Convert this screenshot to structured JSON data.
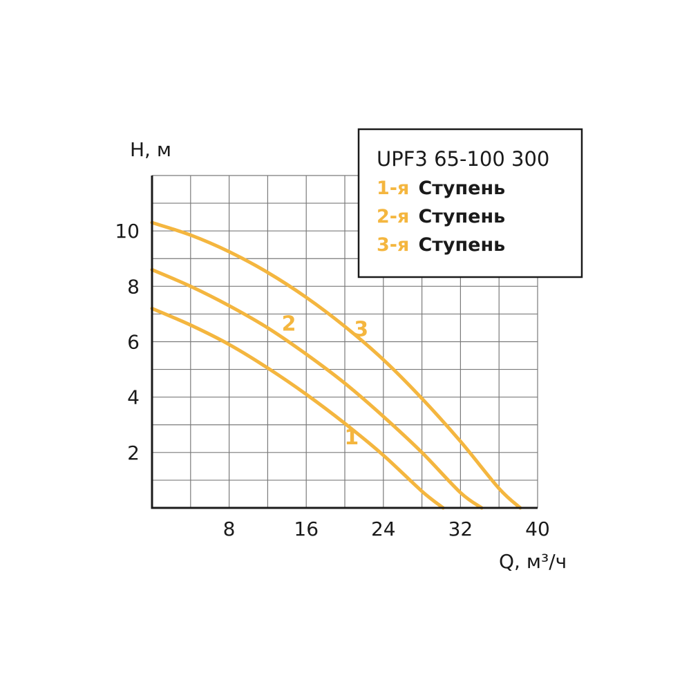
{
  "colors": {
    "curve": "#f4b63f",
    "grid": "#7a7a7a",
    "axis": "#1a1a1a"
  },
  "chart_data": {
    "type": "line",
    "xlabel": "Q, м³/ч",
    "ylabel": "H, м",
    "xlim": [
      0,
      40
    ],
    "ylim": [
      0,
      12
    ],
    "x_ticks": [
      8,
      16,
      24,
      32,
      40
    ],
    "y_ticks": [
      2,
      4,
      6,
      8,
      10
    ],
    "grid": true,
    "legend": {
      "title": "UPF3 65-100 300",
      "placement": "top-right",
      "entries": [
        {
          "num": "1-я",
          "word": "Ступень"
        },
        {
          "num": "2-я",
          "word": "Ступень"
        },
        {
          "num": "3-я",
          "word": "Ступень"
        }
      ]
    },
    "series": [
      {
        "label": "1",
        "label_at": [
          20.7,
          2.3
        ],
        "x": [
          0,
          4,
          8,
          12,
          16,
          20,
          24,
          28,
          30.2
        ],
        "y": [
          7.2,
          6.6,
          5.9,
          5.05,
          4.1,
          3.05,
          1.9,
          0.6,
          0
        ]
      },
      {
        "label": "2",
        "label_at": [
          14.2,
          6.4
        ],
        "x": [
          0,
          4,
          8,
          12,
          16,
          20,
          24,
          28,
          32,
          34.2
        ],
        "y": [
          8.6,
          8.0,
          7.3,
          6.5,
          5.55,
          4.5,
          3.3,
          2.0,
          0.55,
          0
        ]
      },
      {
        "label": "3",
        "label_at": [
          21.7,
          6.2
        ],
        "x": [
          0,
          4,
          8,
          12,
          16,
          20,
          24,
          28,
          32,
          36,
          38.2
        ],
        "y": [
          10.3,
          9.85,
          9.25,
          8.5,
          7.6,
          6.55,
          5.35,
          3.95,
          2.4,
          0.7,
          0
        ]
      }
    ]
  }
}
